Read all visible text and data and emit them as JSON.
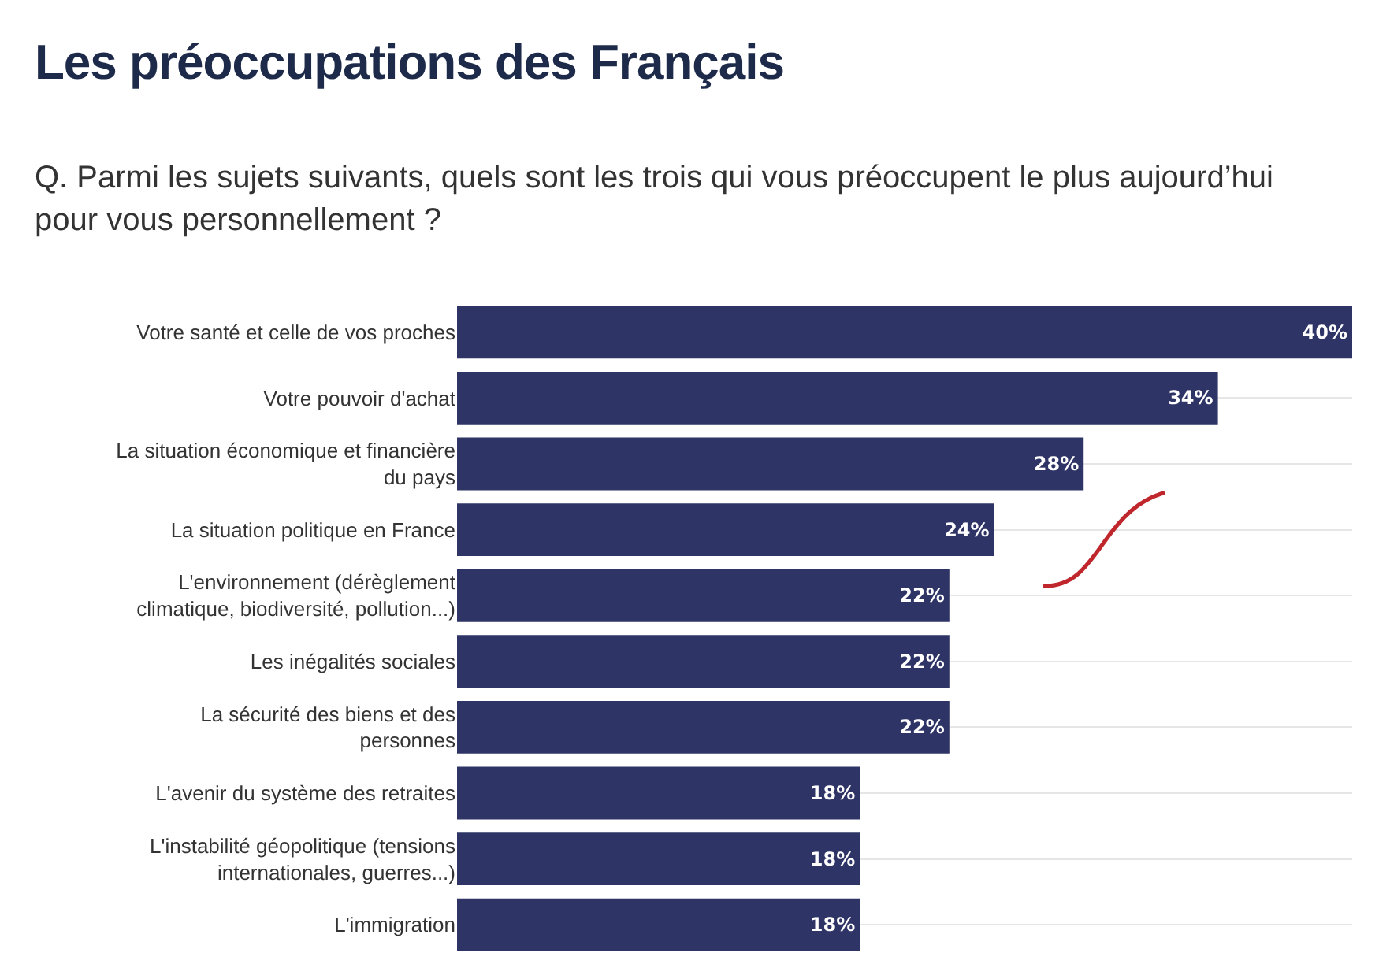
{
  "chart_data": {
    "type": "bar",
    "orientation": "horizontal",
    "title": "Les préoccupations des Français",
    "subtitle": "Q. Parmi les sujets suivants, quels sont les trois qui vous préoccupent le plus aujourd’hui pour vous personnellement ?",
    "categories": [
      "Votre santé et celle de vos proches",
      "Votre pouvoir d'achat",
      "La situation économique et financière du pays",
      "La situation politique en France",
      "L'environnement (dérèglement climatique, biodiversité, pollution...)",
      "Les inégalités sociales",
      "La sécurité des biens et des personnes",
      "L'avenir du système des retraites",
      "L'instabilité géopolitique (tensions internationales, guerres...)",
      "L'immigration"
    ],
    "values": [
      40,
      34,
      28,
      24,
      22,
      22,
      22,
      18,
      18,
      18
    ],
    "value_labels": [
      "40%",
      "34%",
      "28%",
      "24%",
      "22%",
      "22%",
      "22%",
      "18%",
      "18%",
      "18%"
    ],
    "color": "#2e3466",
    "grid": "y",
    "legend": false
  }
}
